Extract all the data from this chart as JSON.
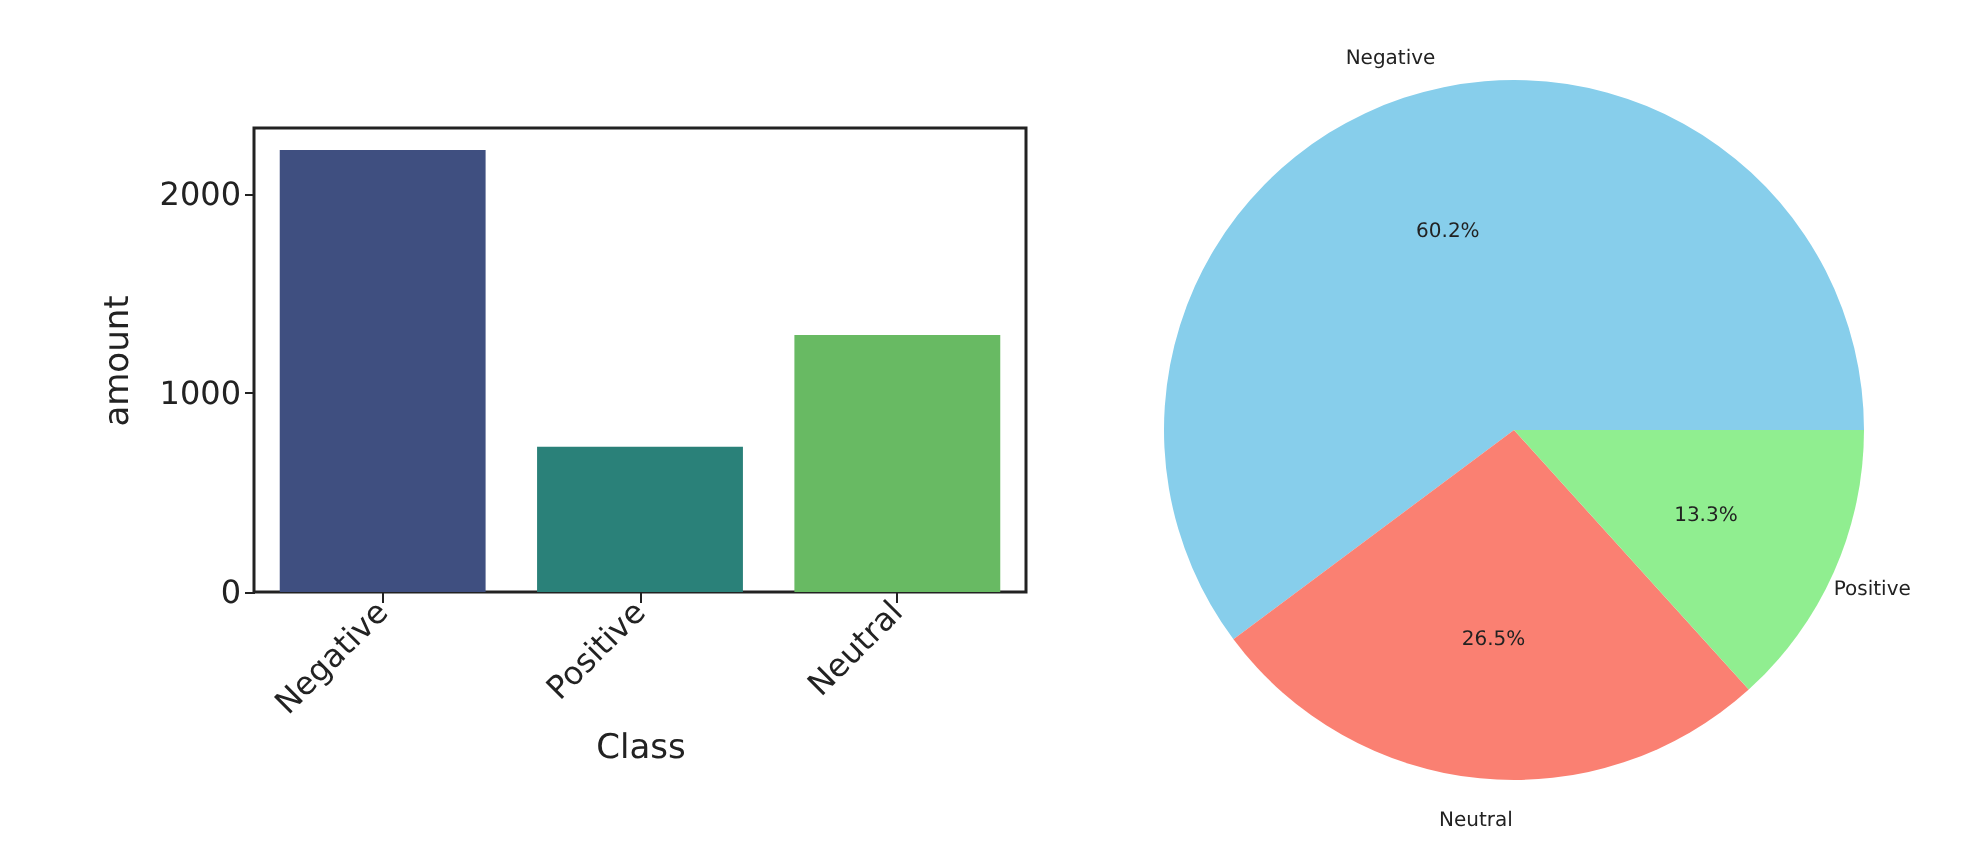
{
  "chart_data": [
    {
      "type": "bar",
      "xlabel": "Class",
      "ylabel": "amount",
      "categories": [
        "Negative",
        "Positive",
        "Neutral"
      ],
      "values": [
        2220,
        730,
        1290
      ],
      "colors": [
        "#3f4f80",
        "#2a8179",
        "#68ba63"
      ],
      "ylim": [
        0,
        2330
      ],
      "yticks": [
        0,
        1000,
        2000
      ],
      "grid": false
    },
    {
      "type": "pie",
      "categories": [
        "Negative",
        "Neutral",
        "Positive"
      ],
      "values": [
        60.2,
        26.5,
        13.3
      ],
      "colors": [
        "#87ceeb",
        "#fa8072",
        "#90ee90"
      ],
      "value_labels": [
        "60.2%",
        "26.5%",
        "13.3%"
      ]
    }
  ]
}
